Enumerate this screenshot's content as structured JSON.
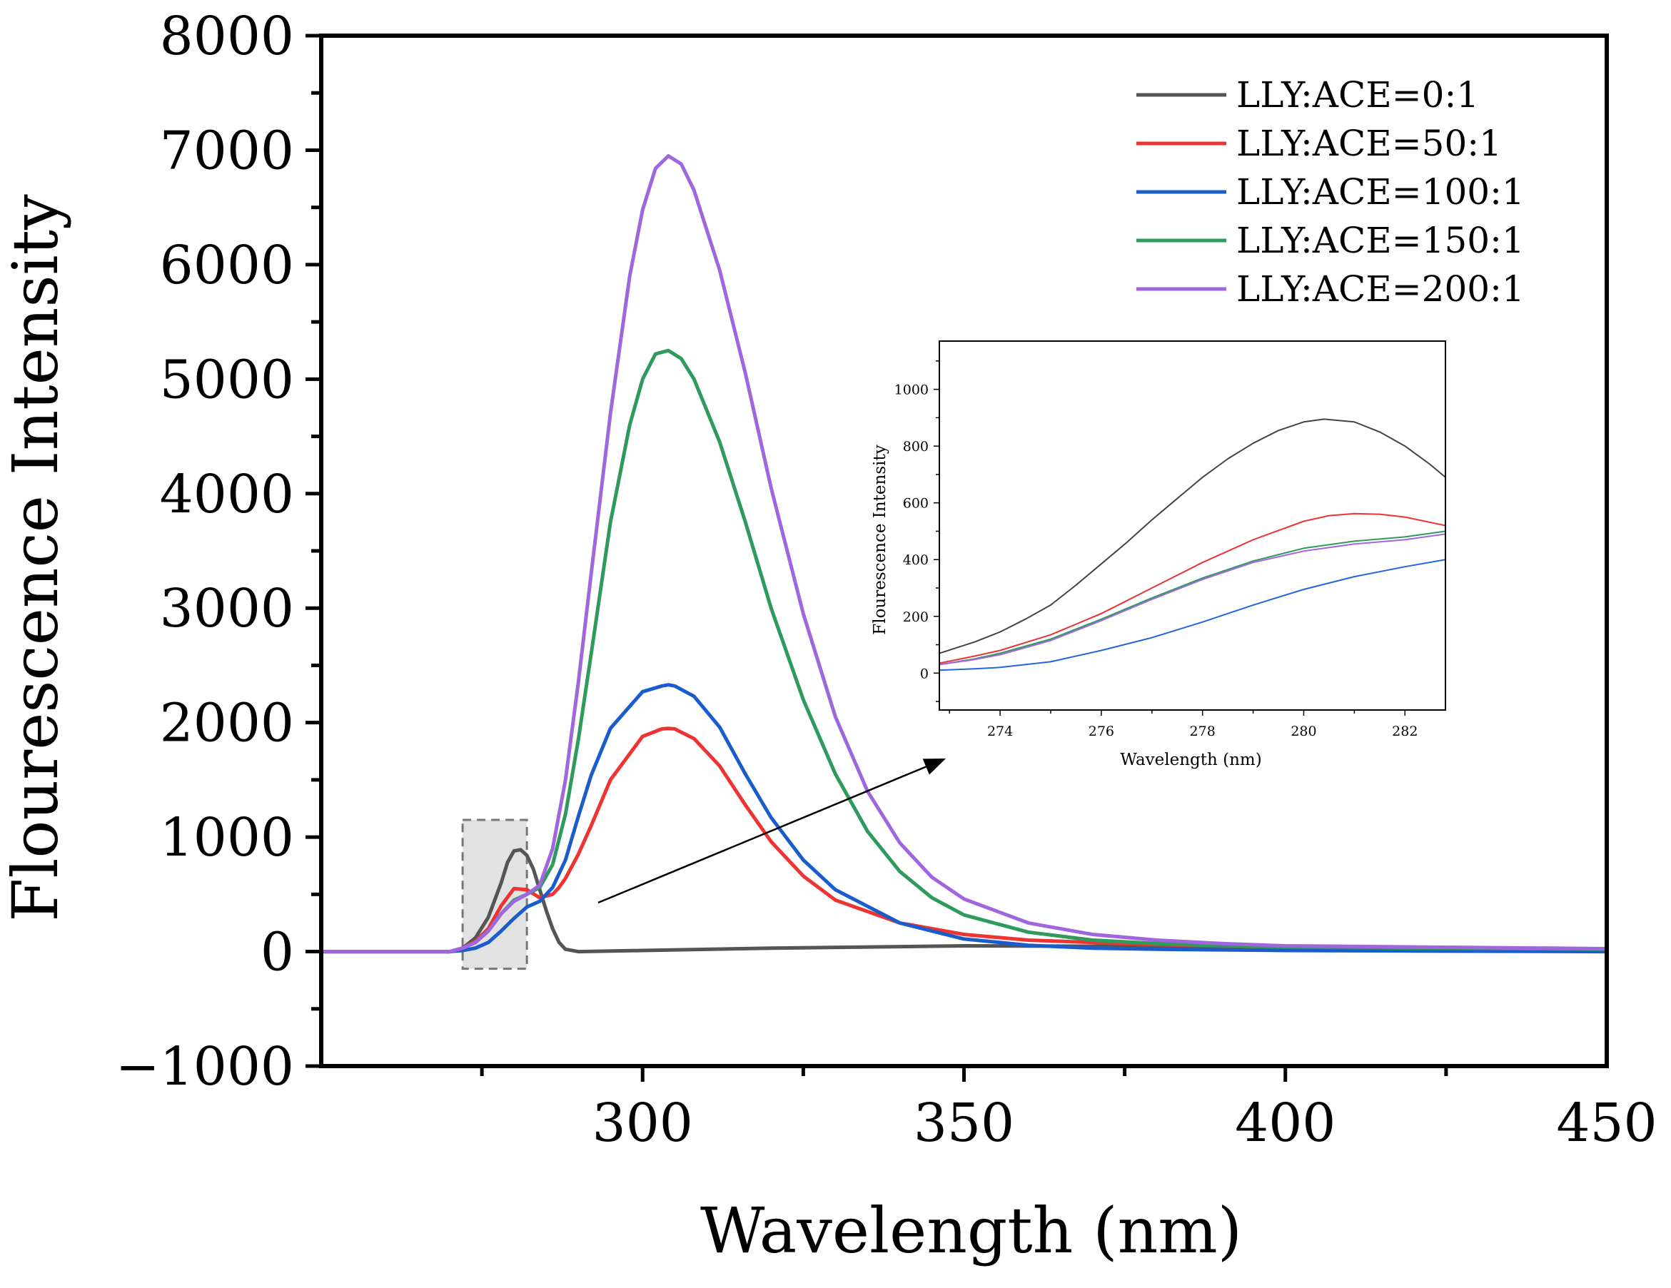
{
  "chart_data": [
    {
      "type": "line",
      "xlabel": "Wavelength (nm)",
      "ylabel": "Flourescence Intensity",
      "xlim": [
        250,
        450
      ],
      "ylim": [
        -1000,
        8000
      ],
      "x_ticks": [
        300,
        350,
        400,
        450
      ],
      "y_ticks": [
        -1000,
        0,
        1000,
        2000,
        3000,
        4000,
        5000,
        6000,
        7000,
        8000
      ],
      "x_tick_labels": [
        "300",
        "350",
        "400",
        "450"
      ],
      "y_tick_labels": [
        "−1000",
        "0",
        "1000",
        "2000",
        "3000",
        "4000",
        "5000",
        "6000",
        "7000",
        "8000"
      ],
      "legend_position": "top-right",
      "highlight_box": {
        "x_range": [
          272,
          282
        ],
        "y_range": [
          -150,
          1150
        ]
      },
      "series": [
        {
          "name": "LLY:ACE=0:1",
          "color": "#555555",
          "x": [
            250,
            270,
            272,
            274,
            276,
            278,
            279,
            280,
            281,
            282,
            283,
            284,
            285,
            286,
            287,
            288,
            290,
            300,
            320,
            350,
            380,
            400,
            450
          ],
          "y": [
            0,
            0,
            30,
            120,
            300,
            600,
            780,
            880,
            890,
            840,
            720,
            540,
            360,
            200,
            80,
            20,
            0,
            10,
            30,
            50,
            45,
            35,
            20
          ]
        },
        {
          "name": "LLY:ACE=50:1",
          "color": "#ee3333",
          "x": [
            250,
            270,
            272,
            274,
            276,
            278,
            280,
            282,
            284,
            286,
            287,
            288,
            290,
            292,
            295,
            300,
            303,
            304,
            305,
            308,
            312,
            316,
            320,
            325,
            330,
            340,
            350,
            360,
            370,
            380,
            400,
            430,
            450
          ],
          "y": [
            0,
            0,
            30,
            90,
            200,
            400,
            550,
            540,
            470,
            500,
            560,
            640,
            850,
            1100,
            1500,
            1880,
            1945,
            1950,
            1945,
            1860,
            1620,
            1280,
            960,
            660,
            450,
            250,
            150,
            100,
            80,
            60,
            40,
            25,
            20
          ]
        },
        {
          "name": "LLY:ACE=100:1",
          "color": "#1a5ccc",
          "x": [
            250,
            270,
            272,
            274,
            276,
            278,
            280,
            282,
            284,
            286,
            288,
            290,
            292,
            295,
            300,
            303,
            304,
            305,
            308,
            312,
            316,
            320,
            325,
            330,
            340,
            350,
            360,
            370,
            380,
            400,
            450
          ],
          "y": [
            0,
            0,
            10,
            30,
            80,
            180,
            290,
            390,
            440,
            560,
            800,
            1180,
            1540,
            1950,
            2270,
            2320,
            2330,
            2320,
            2230,
            1960,
            1550,
            1170,
            800,
            540,
            250,
            110,
            55,
            30,
            20,
            10,
            0
          ]
        },
        {
          "name": "LLY:ACE=150:1",
          "color": "#2e9a5c",
          "x": [
            250,
            270,
            272,
            274,
            276,
            278,
            280,
            282,
            284,
            286,
            288,
            290,
            292,
            295,
            298,
            300,
            302,
            304,
            306,
            308,
            312,
            316,
            320,
            325,
            330,
            335,
            340,
            345,
            350,
            360,
            370,
            380,
            390,
            400,
            420,
            450
          ],
          "y": [
            0,
            0,
            30,
            80,
            180,
            330,
            450,
            500,
            560,
            760,
            1200,
            1850,
            2600,
            3750,
            4600,
            5000,
            5220,
            5250,
            5180,
            5000,
            4450,
            3750,
            3000,
            2200,
            1550,
            1050,
            700,
            470,
            320,
            170,
            100,
            70,
            50,
            40,
            30,
            20
          ]
        },
        {
          "name": "LLY:ACE=200:1",
          "color": "#a066dd",
          "x": [
            250,
            270,
            272,
            274,
            276,
            278,
            280,
            282,
            284,
            286,
            288,
            290,
            292,
            295,
            298,
            300,
            302,
            304,
            306,
            308,
            312,
            316,
            320,
            325,
            330,
            335,
            340,
            345,
            350,
            360,
            370,
            380,
            390,
            400,
            420,
            450
          ],
          "y": [
            0,
            0,
            30,
            80,
            180,
            330,
            440,
            500,
            580,
            900,
            1500,
            2350,
            3300,
            4700,
            5900,
            6480,
            6840,
            6950,
            6880,
            6650,
            5950,
            5050,
            4050,
            2950,
            2050,
            1400,
            950,
            650,
            460,
            250,
            150,
            100,
            70,
            50,
            40,
            25
          ]
        }
      ]
    },
    {
      "type": "line",
      "role": "inset",
      "xlabel": "Wavelength (nm)",
      "ylabel": "Flourescence Intensity",
      "xlim": [
        272.8,
        282.8
      ],
      "ylim": [
        -130,
        1170
      ],
      "x_ticks": [
        274,
        276,
        278,
        280,
        282
      ],
      "y_ticks": [
        0,
        200,
        400,
        600,
        800,
        1000
      ],
      "x_tick_labels": [
        "274",
        "276",
        "278",
        "280",
        "282"
      ],
      "y_tick_labels": [
        "0",
        "200",
        "400",
        "600",
        "800",
        "1000"
      ],
      "series": [
        {
          "name": "LLY:ACE=0:1",
          "color": "#444444",
          "x": [
            272.8,
            273.5,
            274,
            274.5,
            275,
            275.5,
            276,
            276.5,
            277,
            277.5,
            278,
            278.5,
            279,
            279.5,
            280,
            280.4,
            281,
            281.5,
            282,
            282.5,
            282.8
          ],
          "y": [
            70,
            110,
            145,
            190,
            240,
            310,
            385,
            460,
            540,
            615,
            690,
            755,
            810,
            855,
            885,
            895,
            885,
            850,
            800,
            735,
            690
          ]
        },
        {
          "name": "LLY:ACE=50:1",
          "color": "#ee3333",
          "x": [
            272.8,
            273.5,
            274,
            275,
            276,
            277,
            278,
            279,
            280,
            280.5,
            281,
            281.5,
            282,
            282.8
          ],
          "y": [
            35,
            60,
            80,
            135,
            210,
            300,
            390,
            470,
            535,
            555,
            562,
            560,
            550,
            520
          ]
        },
        {
          "name": "LLY:ACE=100:1",
          "color": "#2266dd",
          "x": [
            272.8,
            273.5,
            274,
            275,
            276,
            277,
            278,
            279,
            280,
            281,
            282,
            282.8
          ],
          "y": [
            10,
            15,
            20,
            40,
            80,
            125,
            180,
            240,
            295,
            340,
            375,
            400
          ]
        },
        {
          "name": "LLY:ACE=150:1",
          "color": "#2e9a5c",
          "x": [
            272.8,
            273.5,
            274,
            275,
            276,
            277,
            278,
            279,
            280,
            281,
            282,
            282.8
          ],
          "y": [
            30,
            50,
            70,
            120,
            190,
            265,
            335,
            395,
            440,
            465,
            480,
            500
          ]
        },
        {
          "name": "LLY:ACE=200:1",
          "color": "#a066dd",
          "x": [
            272.8,
            273.5,
            274,
            275,
            276,
            277,
            278,
            279,
            280,
            281,
            282,
            282.8
          ],
          "y": [
            30,
            48,
            65,
            115,
            185,
            260,
            330,
            390,
            430,
            455,
            470,
            490
          ]
        }
      ]
    }
  ]
}
